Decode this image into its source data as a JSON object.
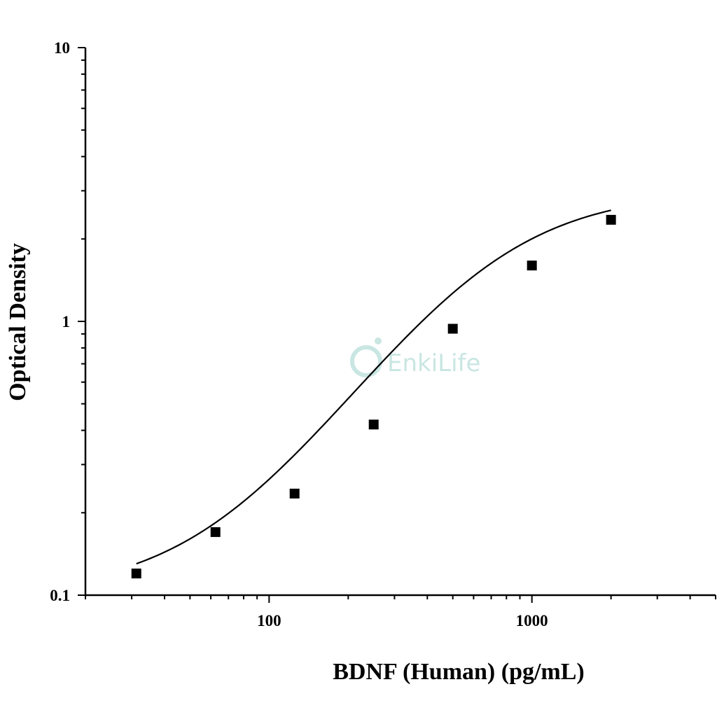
{
  "chart_data": {
    "type": "scatter",
    "xlabel": "BDNF (Human) (pg/mL)",
    "ylabel": "Optical Density",
    "xscale": "log",
    "yscale": "log",
    "xlim": [
      20,
      5000
    ],
    "ylim": [
      0.1,
      10
    ],
    "x_ticks": [
      100,
      1000
    ],
    "x_tick_labels": [
      "100",
      "1000"
    ],
    "y_ticks": [
      0.1,
      1,
      10
    ],
    "y_tick_labels": [
      "0.1",
      "1",
      "10"
    ],
    "grid": false,
    "legend": "none",
    "points": [
      {
        "x": 31.25,
        "y": 0.12
      },
      {
        "x": 62.5,
        "y": 0.17
      },
      {
        "x": 125,
        "y": 0.235
      },
      {
        "x": 250,
        "y": 0.42
      },
      {
        "x": 500,
        "y": 0.94
      },
      {
        "x": 1000,
        "y": 1.6
      },
      {
        "x": 2000,
        "y": 2.35
      }
    ],
    "fit_curve": {
      "model": "4PL",
      "bottom": 0.1,
      "top": 3.0,
      "ec50": 650,
      "hill": 1.5
    },
    "marker_color": "#000000",
    "curve_color": "#000000"
  },
  "watermark": {
    "text": "EnkiLife",
    "color": "#c9e6e2"
  }
}
